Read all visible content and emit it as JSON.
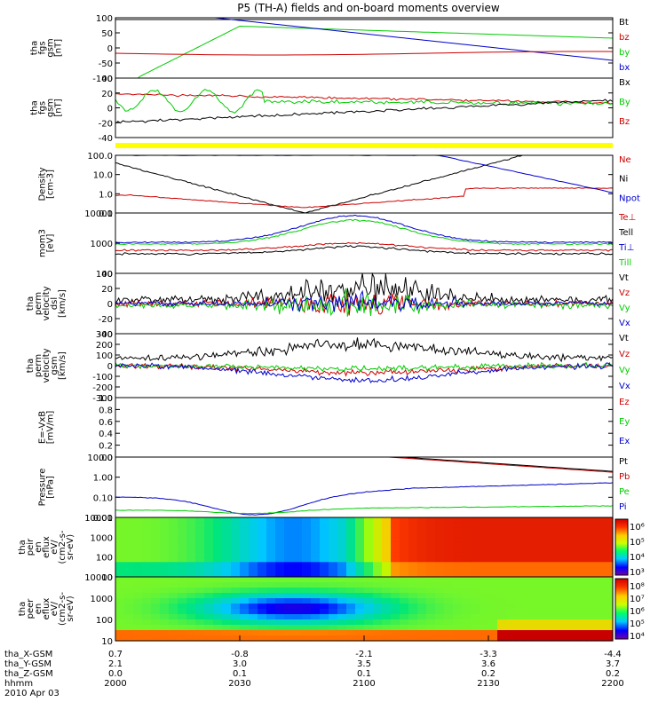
{
  "title": "P5 (TH-A) fields and on-board moments overview",
  "colors": {
    "black": "#000000",
    "red": "#cc0000",
    "green": "#00cc00",
    "blue": "#0000cc",
    "yellow": "#ffff00"
  },
  "chart_data": {
    "type": "line",
    "x_axis": {
      "tick_labels": [
        "2000",
        "2030",
        "2100",
        "2130",
        "2200"
      ],
      "rows": [
        {
          "label": "tha_X-GSM",
          "values": [
            "0.7",
            "-0.8",
            "-2.1",
            "-3.3",
            "-4.4"
          ]
        },
        {
          "label": "tha_Y-GSM",
          "values": [
            "2.1",
            "3.0",
            "3.5",
            "3.6",
            "3.7"
          ]
        },
        {
          "label": "tha_Z-GSM",
          "values": [
            "0.0",
            "0.1",
            "0.1",
            "0.2",
            "0.2"
          ]
        },
        {
          "label": "hhmm",
          "values": [
            "2000",
            "2030",
            "2100",
            "2130",
            "2200"
          ]
        }
      ],
      "date": "2010 Apr 03"
    },
    "panels": [
      {
        "ylabel": [
          "tha",
          "fgs",
          "gsm",
          "[nT]"
        ],
        "ylim": [
          -100,
          100
        ],
        "ticks": [
          "100",
          "50",
          "0",
          "-50",
          "-100"
        ],
        "legend": [
          {
            "name": "Bt",
            "color": "#000000"
          },
          {
            "name": "bz",
            "color": "#cc0000"
          },
          {
            "name": "by",
            "color": "#00cc00"
          },
          {
            "name": "bx",
            "color": "#0000cc"
          }
        ]
      },
      {
        "ylabel": [
          "tha",
          "fgs",
          "gsm",
          "[nT]"
        ],
        "ylim": [
          -50,
          40
        ],
        "ticks": [
          "40",
          "20",
          "0",
          "-20",
          "-40"
        ],
        "legend": [
          {
            "name": "Bx",
            "color": "#000000"
          },
          {
            "name": "By",
            "color": "#00cc00"
          },
          {
            "name": "Bz",
            "color": "#cc0000"
          }
        ]
      },
      {
        "ylabel": [
          "Density",
          "[cm-3]"
        ],
        "ylim": [
          0.1,
          100
        ],
        "ticks": [
          "100.0",
          "10.0",
          "1.0",
          "0.1"
        ],
        "legend": [
          {
            "name": "Ne",
            "color": "#cc0000"
          },
          {
            "name": "Ni",
            "color": "#000000"
          },
          {
            "name": "Npot",
            "color": "#0000cc"
          }
        ]
      },
      {
        "ylabel": [
          "mom3",
          "[eV]"
        ],
        "ylim": [
          60,
          12000
        ],
        "ticks": [
          "10000",
          "1000",
          "100"
        ],
        "legend": [
          {
            "name": "Te⊥",
            "color": "#cc0000"
          },
          {
            "name": "Tell",
            "color": "#000000"
          },
          {
            "name": "Ti⊥",
            "color": "#0000cc"
          },
          {
            "name": "Till",
            "color": "#00cc00"
          }
        ]
      },
      {
        "ylabel": [
          "tha",
          "perm",
          "velocity",
          "dsl",
          "[km/s]"
        ],
        "ylim": [
          -40,
          40
        ],
        "ticks": [
          "40",
          "20",
          "0",
          "-20",
          "-40"
        ],
        "legend": [
          {
            "name": "Vt",
            "color": "#000000"
          },
          {
            "name": "Vz",
            "color": "#cc0000"
          },
          {
            "name": "Vy",
            "color": "#00cc00"
          },
          {
            "name": "Vx",
            "color": "#0000cc"
          }
        ]
      },
      {
        "ylabel": [
          "tha",
          "perm",
          "velocity",
          "gsm",
          "[km/s]"
        ],
        "ylim": [
          -300,
          300
        ],
        "ticks": [
          "300",
          "200",
          "100",
          "0",
          "-100",
          "-200",
          "-300"
        ],
        "legend": [
          {
            "name": "Vt",
            "color": "#000000"
          },
          {
            "name": "Vz",
            "color": "#cc0000"
          },
          {
            "name": "Vy",
            "color": "#00cc00"
          },
          {
            "name": "Vx",
            "color": "#0000cc"
          }
        ]
      },
      {
        "ylabel": [
          "E=-VxB",
          "[mV/m]"
        ],
        "ylim": [
          0,
          1
        ],
        "ticks": [
          "1.0",
          "0.8",
          "0.6",
          "0.4",
          "0.2",
          "0.0"
        ],
        "legend": [
          {
            "name": "Ez",
            "color": "#cc0000"
          },
          {
            "name": "Ey",
            "color": "#00cc00"
          },
          {
            "name": "Ex",
            "color": "#0000cc"
          }
        ]
      },
      {
        "ylabel": [
          "Pressure",
          "[nPa]"
        ],
        "ylim": [
          0.01,
          10
        ],
        "ticks": [
          "10.00",
          "1.00",
          "0.10",
          "0.01"
        ],
        "legend": [
          {
            "name": "Pt",
            "color": "#000000"
          },
          {
            "name": "Pb",
            "color": "#cc0000"
          },
          {
            "name": "Pe",
            "color": "#00cc00"
          },
          {
            "name": "Pi",
            "color": "#0000cc"
          }
        ]
      },
      {
        "ylabel": [
          "tha",
          "peir",
          "en",
          "eflux",
          "eV/",
          "(cm2-s-",
          "sr-eV)"
        ],
        "ylim": [
          10,
          10000
        ],
        "ticks": [
          "10000",
          "1000",
          "100",
          "10"
        ],
        "colorbar": [
          "10⁶",
          "10⁵",
          "10⁴",
          "10³"
        ]
      },
      {
        "ylabel": [
          "tha",
          "peer",
          "en",
          "eflux",
          "eV/",
          "(cm2-s-",
          "sr-eV)"
        ],
        "ylim": [
          10,
          10000
        ],
        "ticks": [
          "10000",
          "1000",
          "100",
          "10"
        ],
        "colorbar": [
          "10⁸",
          "10⁷",
          "10⁶",
          "10⁵",
          "10⁴"
        ]
      }
    ]
  }
}
